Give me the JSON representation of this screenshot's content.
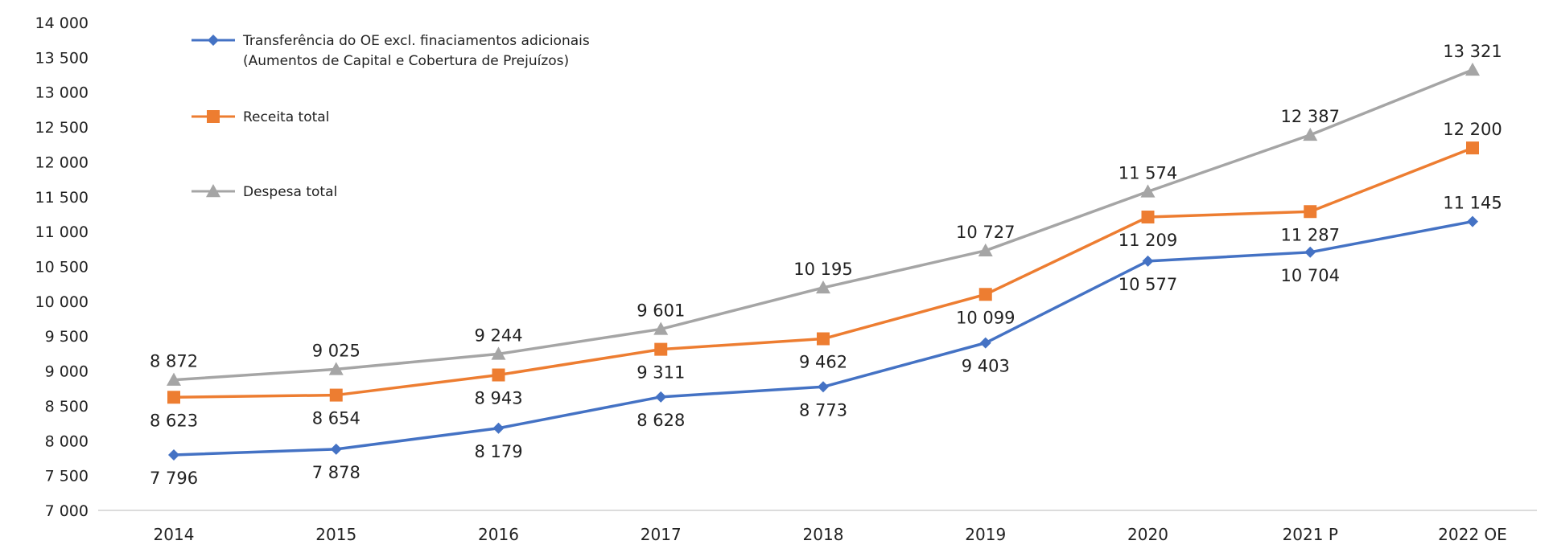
{
  "chart_data": {
    "type": "line",
    "title": "",
    "xlabel": "",
    "ylabel": "",
    "categories": [
      "2014",
      "2015",
      "2016",
      "2017",
      "2018",
      "2019",
      "2020",
      "2021 P",
      "2022 OE"
    ],
    "ylim": [
      7000,
      14000
    ],
    "yticks": [
      7000,
      7500,
      8000,
      8500,
      9000,
      9500,
      10000,
      10500,
      11000,
      11500,
      12000,
      12500,
      13000,
      13500,
      14000
    ],
    "ytick_labels": [
      "7 000",
      "7 500",
      "8 000",
      "8 500",
      "9 000",
      "9 500",
      "10 000",
      "10 500",
      "11 000",
      "11 500",
      "12 000",
      "12 500",
      "13 000",
      "13 500",
      "14 000"
    ],
    "grid": false,
    "legend_position": "top-left",
    "series": [
      {
        "name": "Transferência do OE excl. finaciamentos adicionais",
        "name_line2": "(Aumentos de Capital e Cobertura de Prejuízos)",
        "color": "#4472c4",
        "marker": "diamond",
        "values": [
          7796,
          7878,
          8179,
          8628,
          8773,
          9403,
          10577,
          10704,
          11145
        ],
        "labels": [
          "7 796",
          "7 878",
          "8 179",
          "8 628",
          "8 773",
          "9 403",
          "10 577",
          "10 704",
          "11 145"
        ],
        "label_pos": [
          "below",
          "below",
          "below",
          "below",
          "below",
          "below",
          "below",
          "below",
          "above"
        ]
      },
      {
        "name": "Receita total",
        "color": "#ed7d31",
        "marker": "square",
        "values": [
          8623,
          8654,
          8943,
          9311,
          9462,
          10099,
          11209,
          11287,
          12200
        ],
        "labels": [
          "8 623",
          "8 654",
          "8 943",
          "9 311",
          "9 462",
          "10 099",
          "11 209",
          "11 287",
          "12 200"
        ],
        "label_pos": [
          "below",
          "below",
          "below",
          "below",
          "below",
          "below",
          "below",
          "below",
          "above"
        ]
      },
      {
        "name": "Despesa total",
        "color": "#a5a5a5",
        "marker": "triangle",
        "values": [
          8872,
          9025,
          9244,
          9601,
          10195,
          10727,
          11574,
          12387,
          13321
        ],
        "labels": [
          "8 872",
          "9 025",
          "9 244",
          "9 601",
          "10 195",
          "10 727",
          "11 574",
          "12 387",
          "13 321"
        ],
        "label_pos": [
          "above",
          "above",
          "above",
          "above",
          "above",
          "above",
          "above",
          "above",
          "above"
        ]
      }
    ]
  }
}
